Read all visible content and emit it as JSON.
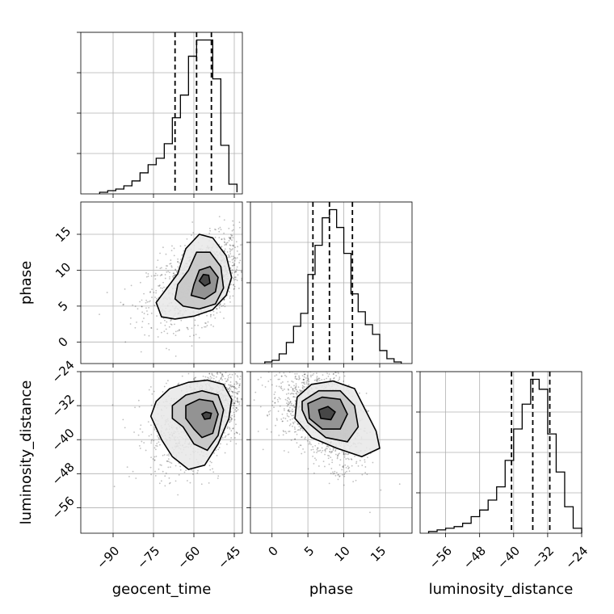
{
  "chart_data": {
    "type": "corner",
    "parameters": [
      "geocent_time",
      "phase",
      "luminosity_distance"
    ],
    "ranges": {
      "geocent_time": [
        -102,
        -42
      ],
      "phase": [
        -3,
        19.5
      ],
      "luminosity_distance": [
        -62,
        -24
      ]
    },
    "ticks": {
      "geocent_time": [
        -90,
        -75,
        -60,
        -45
      ],
      "phase": [
        0,
        5,
        10,
        15
      ],
      "luminosity_distance": [
        -56,
        -48,
        -40,
        -32,
        -24
      ]
    },
    "quantiles": {
      "geocent_time": [
        -67,
        -59,
        -53.5
      ],
      "phase": [
        5.7,
        8,
        11.2
      ],
      "luminosity_distance": [
        -40.5,
        -35.5,
        -31.5
      ]
    },
    "histograms": {
      "geocent_time": {
        "edges": [
          -95,
          -92,
          -89,
          -86,
          -83,
          -80,
          -77,
          -74,
          -71,
          -68,
          -65,
          -62,
          -59,
          -56,
          -53,
          -50,
          -47,
          -44
        ],
        "counts": [
          1,
          2,
          3,
          5,
          8,
          13,
          18,
          22,
          31,
          47,
          61,
          85,
          95,
          95,
          71,
          30,
          6,
          1
        ]
      },
      "phase": {
        "edges": [
          -1,
          0,
          1,
          2,
          3,
          4,
          5,
          6,
          7,
          8,
          9,
          10,
          11,
          12,
          13,
          14,
          15,
          16,
          17,
          18
        ],
        "counts": [
          1,
          2,
          6,
          13,
          23,
          31,
          55,
          73,
          90,
          95,
          84,
          68,
          43,
          32,
          24,
          18,
          8,
          3,
          1
        ]
      },
      "luminosity_distance": {
        "edges": [
          -60,
          -58,
          -56,
          -54,
          -52,
          -50,
          -48,
          -46,
          -44,
          -42,
          -40,
          -38,
          -36,
          -34,
          -32,
          -30,
          -28,
          -26,
          -24
        ],
        "counts": [
          1,
          2,
          3,
          4,
          6,
          10,
          14,
          20,
          28,
          44,
          63,
          78,
          93,
          87,
          60,
          37,
          16,
          3
        ]
      }
    },
    "pairs": [
      {
        "x": "geocent_time",
        "y": "phase",
        "mode": [
          -56,
          8.5
        ],
        "spread": [
          8,
          3
        ],
        "rho": 0.45,
        "contours": [
          [
            [
              -72,
              3.5
            ],
            [
              -67,
              3.2
            ],
            [
              -60,
              3.6
            ],
            [
              -53,
              4.5
            ],
            [
              -48,
              6.5
            ],
            [
              -46,
              9
            ],
            [
              -48,
              12
            ],
            [
              -53,
              14.5
            ],
            [
              -58,
              15
            ],
            [
              -63,
              13
            ],
            [
              -66,
              9.5
            ],
            [
              -70,
              7.5
            ],
            [
              -74,
              5.5
            ]
          ],
          [
            [
              -64,
              5
            ],
            [
              -58,
              4.6
            ],
            [
              -52,
              5.3
            ],
            [
              -49,
              7.5
            ],
            [
              -50,
              10.5
            ],
            [
              -54,
              12.5
            ],
            [
              -59,
              12.5
            ],
            [
              -62,
              10
            ],
            [
              -66,
              8
            ],
            [
              -67,
              6
            ]
          ],
          [
            [
              -61,
              6.5
            ],
            [
              -56,
              6
            ],
            [
              -52,
              7
            ],
            [
              -51,
              9
            ],
            [
              -54,
              10.5
            ],
            [
              -58,
              10
            ],
            [
              -60,
              8
            ]
          ],
          [
            [
              -58,
              8.5
            ],
            [
              -56,
              7.8
            ],
            [
              -54,
              8.2
            ],
            [
              -54.5,
              9.3
            ],
            [
              -56.5,
              9.4
            ]
          ]
        ]
      },
      {
        "x": "geocent_time",
        "y": "luminosity_distance",
        "mode": [
          -55,
          -34
        ],
        "spread": [
          8,
          6
        ],
        "rho": 0.45,
        "contours": [
          [
            [
              -76,
              -34.5
            ],
            [
              -74,
              -31
            ],
            [
              -69,
              -28
            ],
            [
              -62,
              -26.5
            ],
            [
              -55,
              -26
            ],
            [
              -49,
              -27
            ],
            [
              -46,
              -30.5
            ],
            [
              -47,
              -35
            ],
            [
              -51,
              -41
            ],
            [
              -56,
              -46
            ],
            [
              -62,
              -47
            ],
            [
              -68,
              -44
            ],
            [
              -72,
              -40
            ]
          ],
          [
            [
              -68,
              -32
            ],
            [
              -63,
              -29.5
            ],
            [
              -57,
              -28.5
            ],
            [
              -51,
              -29.5
            ],
            [
              -49,
              -33
            ],
            [
              -51,
              -39
            ],
            [
              -55,
              -42.5
            ],
            [
              -60,
              -41
            ],
            [
              -64,
              -37
            ],
            [
              -68,
              -35
            ]
          ],
          [
            [
              -63,
              -32
            ],
            [
              -58,
              -30.5
            ],
            [
              -53,
              -31
            ],
            [
              -51,
              -34
            ],
            [
              -53,
              -38.5
            ],
            [
              -57,
              -39.5
            ],
            [
              -60,
              -37.5
            ],
            [
              -63,
              -35
            ]
          ],
          [
            [
              -57,
              -34
            ],
            [
              -55.5,
              -33.5
            ],
            [
              -53.5,
              -33.8
            ],
            [
              -54,
              -35
            ],
            [
              -56,
              -35.2
            ]
          ]
        ]
      },
      {
        "x": "phase",
        "y": "luminosity_distance",
        "mode": [
          7.5,
          -34
        ],
        "spread": [
          3,
          6
        ],
        "rho": -0.45,
        "contours": [
          [
            [
              3.5,
              -30
            ],
            [
              5.5,
              -27
            ],
            [
              8.5,
              -26.2
            ],
            [
              11.5,
              -28
            ],
            [
              13,
              -33
            ],
            [
              14.5,
              -38
            ],
            [
              15,
              -42
            ],
            [
              12.5,
              -44
            ],
            [
              9,
              -42
            ],
            [
              5.5,
              -39.5
            ],
            [
              3.2,
              -35
            ]
          ],
          [
            [
              4.2,
              -31
            ],
            [
              6.5,
              -28.5
            ],
            [
              9.5,
              -28.5
            ],
            [
              11.5,
              -32
            ],
            [
              12,
              -37
            ],
            [
              10.5,
              -40.5
            ],
            [
              7.5,
              -39.5
            ],
            [
              5,
              -36
            ],
            [
              4.2,
              -33
            ]
          ],
          [
            [
              5,
              -31.5
            ],
            [
              7,
              -30
            ],
            [
              9.5,
              -30.5
            ],
            [
              10.5,
              -34
            ],
            [
              9.5,
              -37.5
            ],
            [
              7,
              -37.5
            ],
            [
              5.2,
              -35
            ]
          ],
          [
            [
              6.5,
              -33
            ],
            [
              7.8,
              -32.2
            ],
            [
              8.8,
              -33.5
            ],
            [
              8.2,
              -35.3
            ],
            [
              6.8,
              -35
            ]
          ]
        ]
      }
    ],
    "xlabels": [
      "geocent_time",
      "phase",
      "luminosity_distance"
    ],
    "ylabels": [
      "",
      "phase",
      "luminosity_distance"
    ],
    "grid": true
  }
}
